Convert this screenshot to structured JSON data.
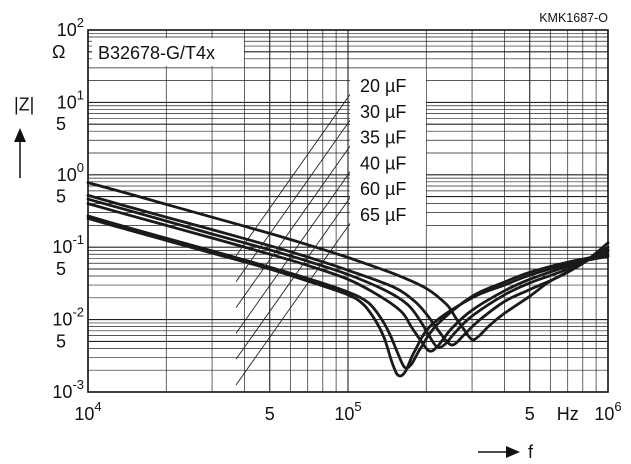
{
  "chart_data": {
    "type": "line",
    "title": "B32678-G/T4x",
    "figure_code": "KMK1687-O",
    "x_axis": {
      "label": "f",
      "unit": "Hz",
      "scale": "log",
      "range": [
        10000,
        1000000
      ],
      "ticks": [
        {
          "value": 10000,
          "base": "10",
          "exp": "4"
        },
        {
          "value": 50000,
          "base": "5",
          "exp": ""
        },
        {
          "value": 100000,
          "base": "10",
          "exp": "5"
        },
        {
          "value": 200000,
          "base": "",
          "exp": ""
        },
        {
          "value": 500000,
          "base": "5",
          "exp": ""
        },
        {
          "value": 1000000,
          "base": "10",
          "exp": "6"
        }
      ]
    },
    "y_axis": {
      "label": "|Z|",
      "unit": "Ω",
      "scale": "log",
      "range": [
        0.001,
        100
      ],
      "ticks": [
        {
          "value": 100,
          "base": "10",
          "exp": "2"
        },
        {
          "value": 50,
          "base": "",
          "exp": ""
        },
        {
          "value": 10,
          "base": "10",
          "exp": "1"
        },
        {
          "value": 5,
          "base": "5",
          "exp": ""
        },
        {
          "value": 1,
          "base": "10",
          "exp": "0"
        },
        {
          "value": 0.5,
          "base": "5",
          "exp": ""
        },
        {
          "value": 0.1,
          "base": "10",
          "exp": "-1"
        },
        {
          "value": 0.05,
          "base": "5",
          "exp": ""
        },
        {
          "value": 0.01,
          "base": "10",
          "exp": "-2"
        },
        {
          "value": 0.005,
          "base": "5",
          "exp": ""
        },
        {
          "value": 0.001,
          "base": "10",
          "exp": "-3"
        }
      ]
    },
    "grid": true,
    "series": [
      {
        "name": "20 µF",
        "points": [
          [
            10000,
            0.78
          ],
          [
            14000,
            0.56
          ],
          [
            20000,
            0.39
          ],
          [
            30000,
            0.26
          ],
          [
            50000,
            0.155
          ],
          [
            70000,
            0.108
          ],
          [
            100000,
            0.072
          ],
          [
            150000,
            0.043
          ],
          [
            200000,
            0.027
          ],
          [
            240000,
            0.016
          ],
          [
            260000,
            0.0105
          ],
          [
            280000,
            0.0072
          ],
          [
            300000,
            0.0053
          ],
          [
            320000,
            0.006
          ],
          [
            350000,
            0.0083
          ],
          [
            400000,
            0.0122
          ],
          [
            500000,
            0.021
          ],
          [
            600000,
            0.034
          ],
          [
            800000,
            0.06
          ],
          [
            1000000,
            0.115
          ]
        ]
      },
      {
        "name": "30 µF",
        "points": [
          [
            10000,
            0.52
          ],
          [
            14000,
            0.37
          ],
          [
            20000,
            0.26
          ],
          [
            30000,
            0.175
          ],
          [
            50000,
            0.105
          ],
          [
            70000,
            0.073
          ],
          [
            100000,
            0.048
          ],
          [
            150000,
            0.028
          ],
          [
            180000,
            0.018
          ],
          [
            200000,
            0.012
          ],
          [
            220000,
            0.0075
          ],
          [
            240000,
            0.005
          ],
          [
            255000,
            0.0045
          ],
          [
            280000,
            0.0062
          ],
          [
            320000,
            0.0098
          ],
          [
            400000,
            0.0178
          ],
          [
            500000,
            0.026
          ],
          [
            700000,
            0.045
          ],
          [
            1000000,
            0.1
          ]
        ]
      },
      {
        "name": "35 µF",
        "points": [
          [
            10000,
            0.46
          ],
          [
            14000,
            0.33
          ],
          [
            20000,
            0.23
          ],
          [
            30000,
            0.152
          ],
          [
            50000,
            0.092
          ],
          [
            70000,
            0.064
          ],
          [
            100000,
            0.042
          ],
          [
            140000,
            0.025
          ],
          [
            170000,
            0.016
          ],
          [
            190000,
            0.0095
          ],
          [
            205000,
            0.006
          ],
          [
            220000,
            0.0042
          ],
          [
            235000,
            0.0045
          ],
          [
            260000,
            0.0068
          ],
          [
            300000,
            0.0112
          ],
          [
            400000,
            0.022
          ],
          [
            500000,
            0.032
          ],
          [
            700000,
            0.05
          ],
          [
            1000000,
            0.092
          ]
        ]
      },
      {
        "name": "40 µF",
        "points": [
          [
            10000,
            0.4
          ],
          [
            14000,
            0.285
          ],
          [
            20000,
            0.2
          ],
          [
            30000,
            0.134
          ],
          [
            50000,
            0.08
          ],
          [
            70000,
            0.056
          ],
          [
            100000,
            0.036
          ],
          [
            130000,
            0.022
          ],
          [
            160000,
            0.013
          ],
          [
            175000,
            0.008
          ],
          [
            190000,
            0.0052
          ],
          [
            205000,
            0.0037
          ],
          [
            220000,
            0.0042
          ],
          [
            250000,
            0.0075
          ],
          [
            300000,
            0.0135
          ],
          [
            400000,
            0.025
          ],
          [
            500000,
            0.036
          ],
          [
            700000,
            0.055
          ],
          [
            1000000,
            0.088
          ]
        ]
      },
      {
        "name": "60 µF",
        "points": [
          [
            10000,
            0.27
          ],
          [
            14000,
            0.19
          ],
          [
            20000,
            0.133
          ],
          [
            30000,
            0.089
          ],
          [
            50000,
            0.053
          ],
          [
            70000,
            0.037
          ],
          [
            100000,
            0.024
          ],
          [
            120000,
            0.017
          ],
          [
            135000,
            0.01
          ],
          [
            145000,
            0.0062
          ],
          [
            155000,
            0.0035
          ],
          [
            165000,
            0.0022
          ],
          [
            175000,
            0.0024
          ],
          [
            190000,
            0.004
          ],
          [
            220000,
            0.0085
          ],
          [
            300000,
            0.021
          ],
          [
            400000,
            0.033
          ],
          [
            500000,
            0.045
          ],
          [
            700000,
            0.062
          ],
          [
            1000000,
            0.08
          ]
        ]
      },
      {
        "name": "65 µF",
        "points": [
          [
            10000,
            0.25
          ],
          [
            14000,
            0.177
          ],
          [
            20000,
            0.124
          ],
          [
            30000,
            0.083
          ],
          [
            50000,
            0.05
          ],
          [
            70000,
            0.034
          ],
          [
            100000,
            0.022
          ],
          [
            115000,
            0.016
          ],
          [
            128000,
            0.0095
          ],
          [
            138000,
            0.0055
          ],
          [
            148000,
            0.0025
          ],
          [
            156000,
            0.0017
          ],
          [
            166000,
            0.0019
          ],
          [
            180000,
            0.0036
          ],
          [
            210000,
            0.0085
          ],
          [
            300000,
            0.02
          ],
          [
            400000,
            0.03
          ],
          [
            500000,
            0.041
          ],
          [
            700000,
            0.058
          ],
          [
            1000000,
            0.075
          ]
        ]
      }
    ]
  }
}
